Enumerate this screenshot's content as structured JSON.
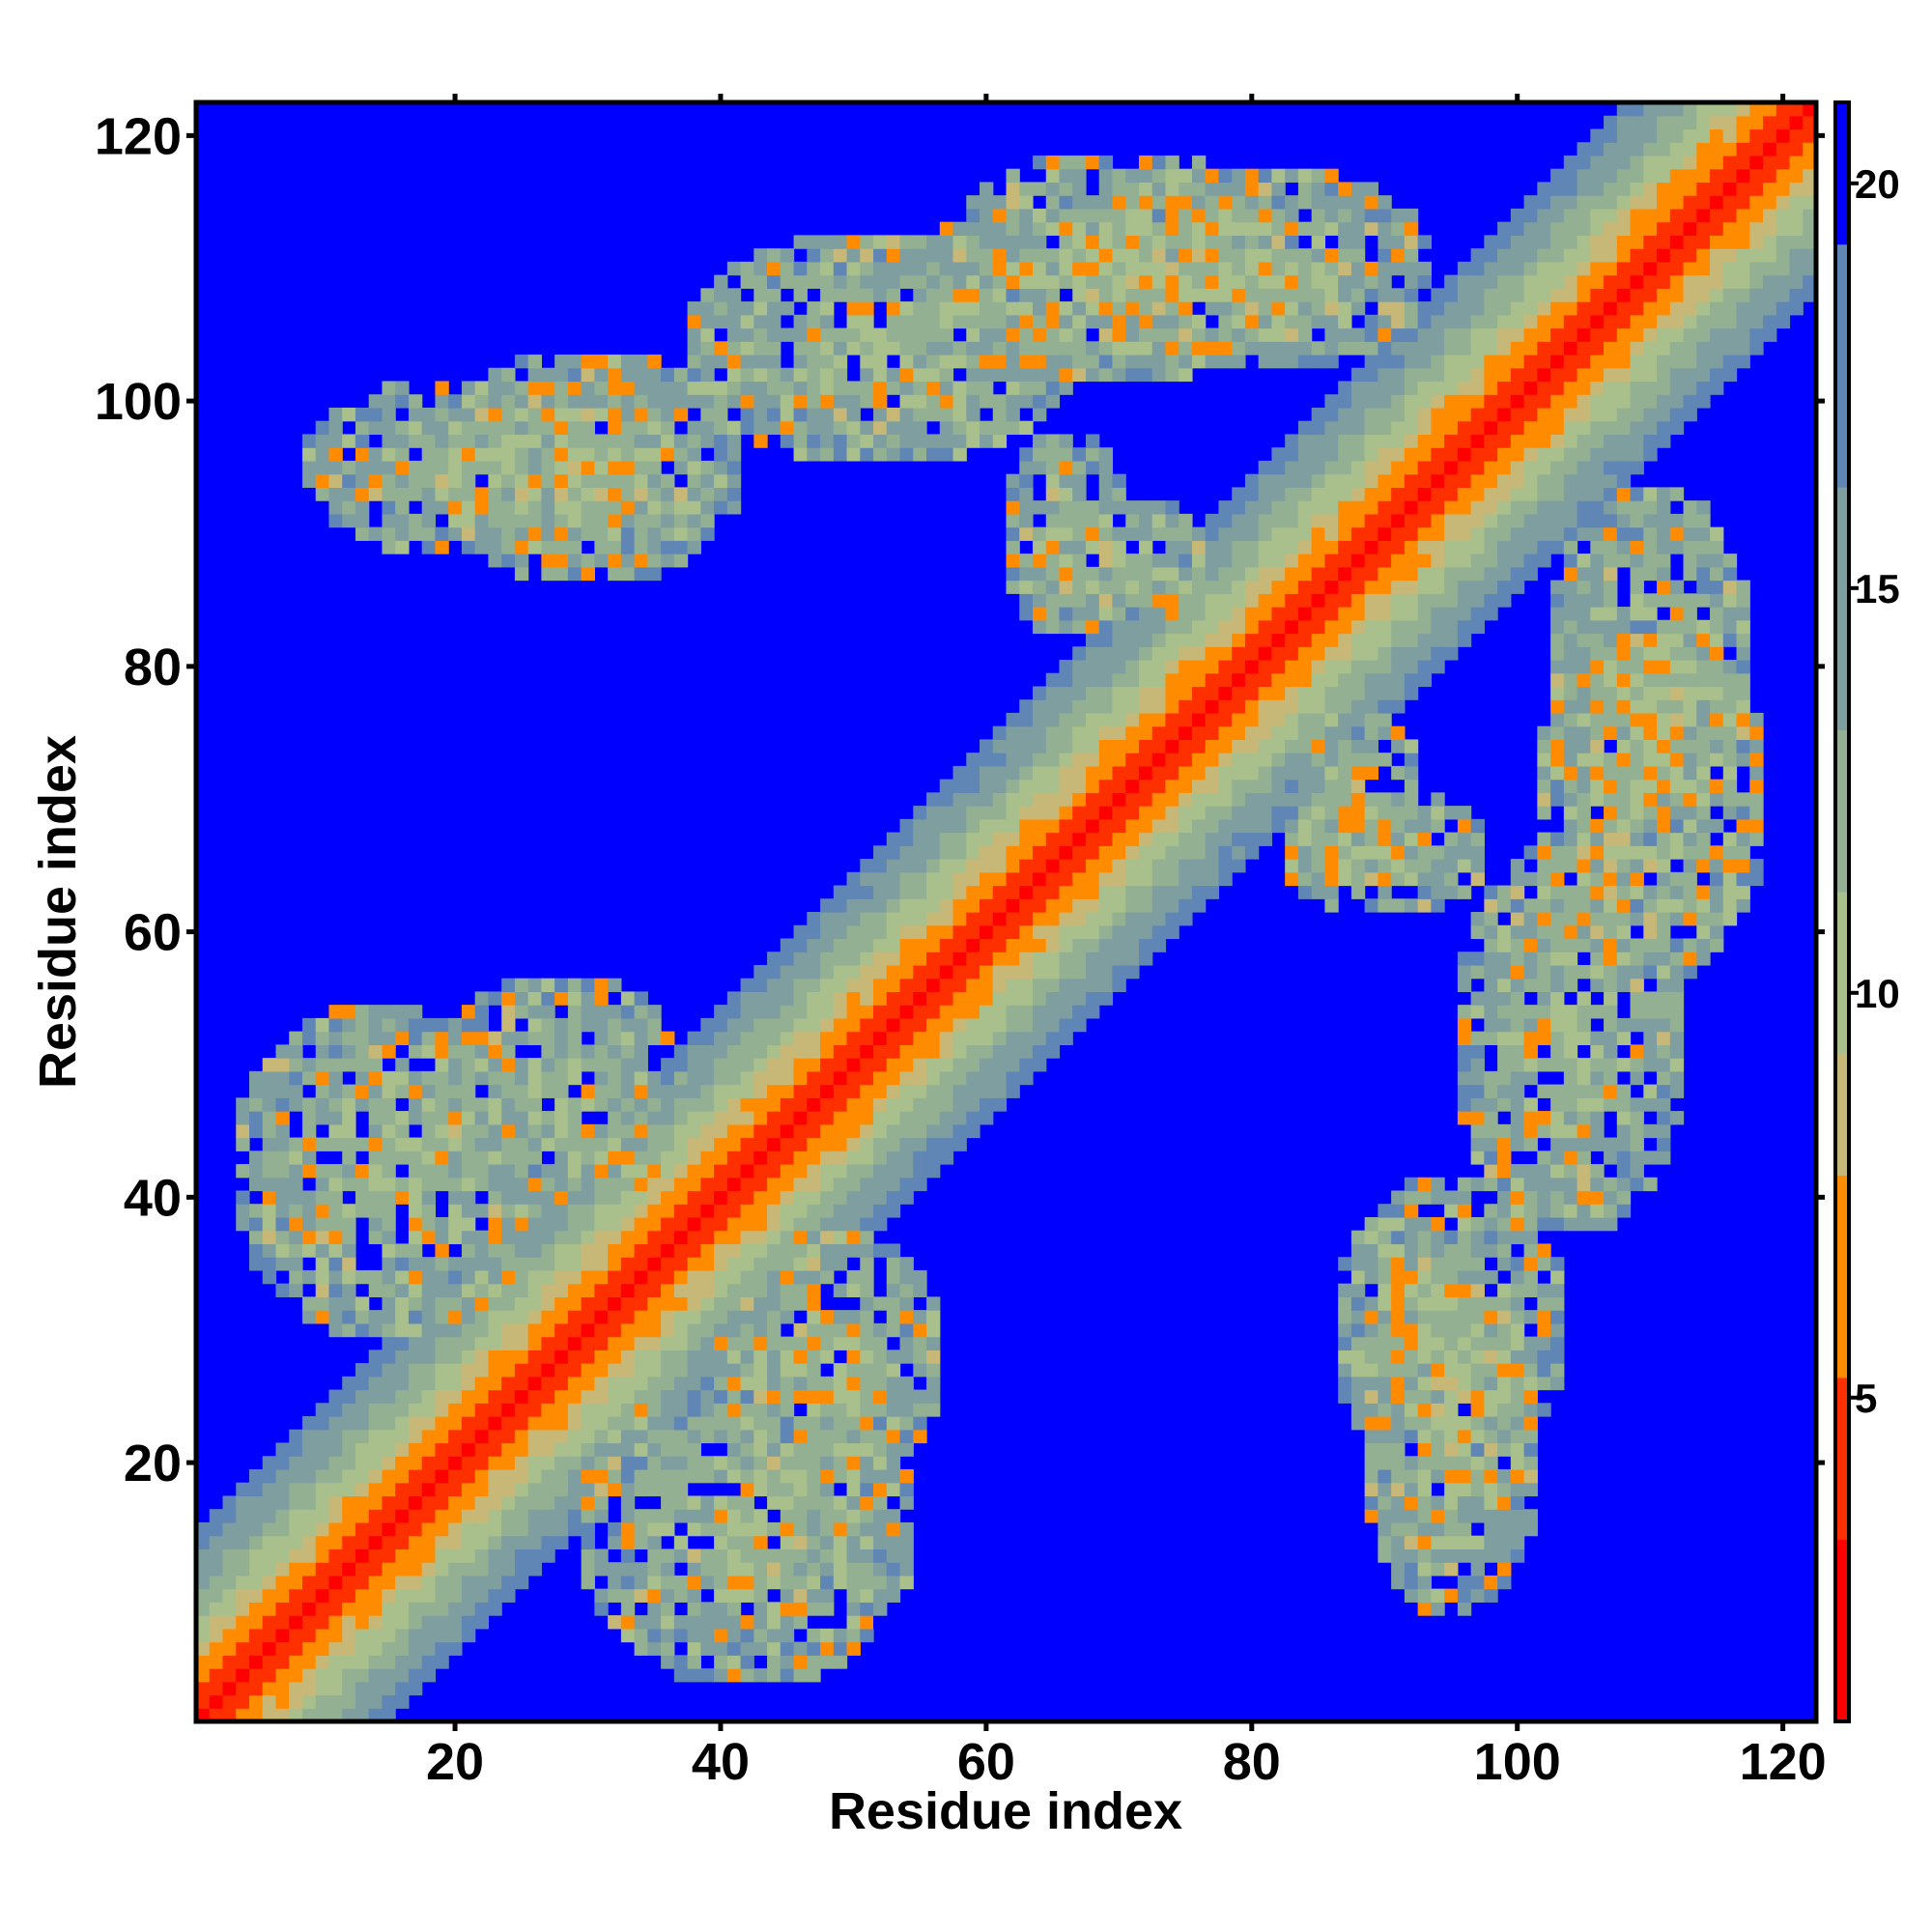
{
  "chart_data": {
    "type": "heatmap",
    "title": "",
    "xlabel": "Residue index",
    "ylabel": "Residue index",
    "n_residues": 122,
    "xlim": [
      1,
      122
    ],
    "ylim": [
      1,
      122
    ],
    "x_ticks": [
      20,
      40,
      60,
      80,
      100,
      120
    ],
    "y_ticks": [
      20,
      40,
      60,
      80,
      100,
      120
    ],
    "colorbar": {
      "range": [
        1,
        21
      ],
      "ticks": [
        5,
        10,
        15,
        20
      ],
      "position": "right"
    },
    "value_scale": "distance",
    "symmetric": true,
    "diagonal_band_halfwidth": 14,
    "contact_blobs": [
      {
        "x": 15,
        "y": 42,
        "sx": 12,
        "sy": 13
      },
      {
        "x": 22,
        "y": 95,
        "sx": 14,
        "sy": 7
      },
      {
        "x": 52,
        "y": 104,
        "sx": 15,
        "sy": 9
      },
      {
        "x": 80,
        "y": 110,
        "sx": 14,
        "sy": 8
      },
      {
        "x": 70,
        "y": 88,
        "sx": 7,
        "sy": 5
      },
      {
        "x": 90,
        "y": 66,
        "sx": 8,
        "sy": 5
      },
      {
        "x": 110,
        "y": 70,
        "sx": 9,
        "sy": 14
      },
      {
        "x": 95,
        "y": 30,
        "sx": 9,
        "sy": 12
      },
      {
        "x": 48,
        "y": 28,
        "sx": 9,
        "sy": 10
      }
    ],
    "grid": false
  },
  "colors": {
    "far": "#0000ff",
    "near": "#ff0000",
    "mid": "#a9c08c",
    "contact": "#ff8c00"
  }
}
